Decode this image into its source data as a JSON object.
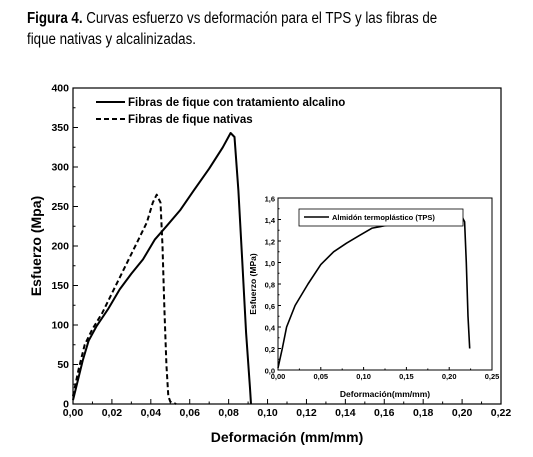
{
  "caption": {
    "label": "Figura 4.",
    "text": "Curvas esfuerzo vs deformación para el TPS y las fibras de fique nativas y alcalinizadas."
  },
  "chart_data": [
    {
      "type": "line",
      "xlabel": "Deformación (mm/mm)",
      "ylabel": "Esfuerzo (Mpa)",
      "xlim": [
        0,
        0.22
      ],
      "ylim": [
        0,
        400
      ],
      "xticks": [
        "0,00",
        "0,02",
        "0,04",
        "0,06",
        "0,08",
        "0,10",
        "0,12",
        "0,14",
        "0,16",
        "0,18",
        "0,20",
        "0,22"
      ],
      "yticks": [
        "0",
        "50",
        "100",
        "150",
        "200",
        "250",
        "300",
        "350",
        "400"
      ],
      "legend_position": "top-center",
      "series": [
        {
          "name": "Fibras de fique con tratamiento alcalino",
          "style": "solid",
          "color": "#000000",
          "points": [
            [
              0,
              5
            ],
            [
              0.002,
              25
            ],
            [
              0.005,
              55
            ],
            [
              0.008,
              80
            ],
            [
              0.012,
              98
            ],
            [
              0.018,
              120
            ],
            [
              0.024,
              145
            ],
            [
              0.03,
              165
            ],
            [
              0.036,
              183
            ],
            [
              0.042,
              208
            ],
            [
              0.048,
              225
            ],
            [
              0.055,
              245
            ],
            [
              0.062,
              270
            ],
            [
              0.07,
              298
            ],
            [
              0.077,
              325
            ],
            [
              0.081,
              343
            ],
            [
              0.083,
              338
            ],
            [
              0.085,
              270
            ],
            [
              0.087,
              180
            ],
            [
              0.089,
              90
            ],
            [
              0.091,
              20
            ],
            [
              0.0915,
              0
            ]
          ]
        },
        {
          "name": "Fibras de fique nativas",
          "style": "dashed",
          "color": "#000000",
          "points": [
            [
              0,
              10
            ],
            [
              0.003,
              45
            ],
            [
              0.006,
              75
            ],
            [
              0.01,
              95
            ],
            [
              0.015,
              115
            ],
            [
              0.02,
              140
            ],
            [
              0.026,
              170
            ],
            [
              0.032,
              200
            ],
            [
              0.038,
              230
            ],
            [
              0.041,
              255
            ],
            [
              0.043,
              265
            ],
            [
              0.045,
              255
            ],
            [
              0.046,
              200
            ],
            [
              0.047,
              120
            ],
            [
              0.048,
              50
            ],
            [
              0.049,
              10
            ],
            [
              0.05,
              3
            ],
            [
              0.053,
              0
            ]
          ]
        }
      ]
    },
    {
      "type": "line",
      "xlabel": "Deformación(mm/mm)",
      "ylabel": "Esfuerzo (MPa)",
      "xlim": [
        0,
        0.25
      ],
      "ylim": [
        0,
        1.6
      ],
      "xticks": [
        "0,00",
        "0,05",
        "0,10",
        "0,15",
        "0,20",
        "0,25"
      ],
      "yticks": [
        "0,0",
        "0,2",
        "0,4",
        "0,6",
        "0,8",
        "1,0",
        "1,2",
        "1,4",
        "1,6"
      ],
      "legend_position": "top-left",
      "series": [
        {
          "name": "Almidón termoplástico (TPS)",
          "style": "solid",
          "color": "#000000",
          "points": [
            [
              0,
              0.02
            ],
            [
              0.005,
              0.2
            ],
            [
              0.01,
              0.4
            ],
            [
              0.02,
              0.6
            ],
            [
              0.035,
              0.8
            ],
            [
              0.05,
              0.98
            ],
            [
              0.065,
              1.1
            ],
            [
              0.08,
              1.18
            ],
            [
              0.095,
              1.25
            ],
            [
              0.11,
              1.32
            ],
            [
              0.13,
              1.35
            ],
            [
              0.15,
              1.36
            ],
            [
              0.17,
              1.375
            ],
            [
              0.19,
              1.39
            ],
            [
              0.205,
              1.42
            ],
            [
              0.215,
              1.425
            ],
            [
              0.218,
              1.38
            ],
            [
              0.22,
              1.0
            ],
            [
              0.222,
              0.5
            ],
            [
              0.224,
              0.2
            ]
          ]
        }
      ]
    }
  ]
}
